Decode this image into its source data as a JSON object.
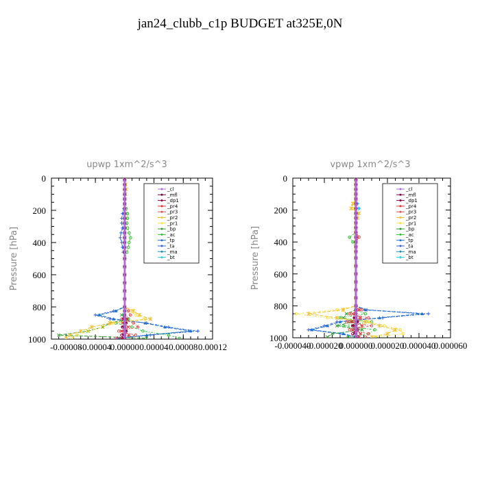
{
  "page_title": "jan24_clubb_c1p  BUDGET at325E,0N",
  "legend_labels": [
    "_cl",
    "_mfl",
    "_dp1",
    "_pr4",
    "_pr3",
    "_pr2",
    "_pr1",
    "_bp",
    "_ac",
    "_tp",
    "_ta",
    "_ma",
    "_bt"
  ],
  "series_colors": {
    "_cl": "#b06ad6",
    "_mfl": "#7a0040",
    "_dp1": "#8b0046",
    "_pr4": "#e03030",
    "_pr3": "#e05050",
    "_pr2": "#f0c030",
    "_pr1": "#f8e040",
    "_bp": "#2f9a2f",
    "_ac": "#30c030",
    "_tp": "#2070d0",
    "_ta": "#3060e0",
    "_ma": "#2090b0",
    "_bt": "#20d0e0"
  },
  "chart_data": [
    {
      "type": "line",
      "title": "upwp   1xm^2/s^3",
      "ylabel": "Pressure [hPa]",
      "xlim": [
        -0.0001,
        0.00012
      ],
      "ylim": [
        1000,
        0
      ],
      "xticks": [
        -8e-05,
        -4e-05,
        0,
        4e-05,
        8e-05,
        0.00012
      ],
      "xtick_labels": [
        "-0.00008",
        "-0.00004",
        "0.00000",
        "0.00004",
        "0.00008",
        "0.00012"
      ],
      "yticks": [
        0,
        200,
        400,
        600,
        800,
        1000
      ],
      "legend": "top-right",
      "pressure": [
        10,
        40,
        70,
        100,
        130,
        160,
        190,
        220,
        250,
        280,
        310,
        340,
        370,
        400,
        430,
        460,
        500,
        550,
        600,
        650,
        700,
        750,
        800,
        825,
        850,
        875,
        900,
        925,
        950,
        975,
        995
      ],
      "series": [
        {
          "name": "_cl",
          "values": [
            0,
            0,
            0,
            0,
            0,
            0,
            0,
            0,
            0,
            0,
            0,
            0,
            0,
            0,
            0,
            0,
            0,
            0,
            0,
            0,
            0,
            0,
            0,
            0,
            0,
            0,
            0,
            0,
            0,
            0,
            0
          ]
        },
        {
          "name": "_mfl",
          "values": [
            0,
            0,
            0,
            0,
            0,
            0,
            0,
            0,
            0,
            0,
            0,
            0,
            0,
            0,
            0,
            0,
            0,
            0,
            0,
            0,
            0,
            0,
            0,
            0,
            0,
            0,
            0,
            0,
            0,
            0,
            0
          ]
        },
        {
          "name": "_dp1",
          "values": [
            0,
            0,
            0,
            0,
            0,
            0,
            0,
            0,
            0,
            0,
            0,
            0,
            0,
            0,
            0,
            0,
            0,
            0,
            0,
            0,
            0,
            0,
            0,
            0,
            0,
            -2e-06,
            2e-06,
            -3e-06,
            2e-06,
            -4e-06,
            -2e-06
          ]
        },
        {
          "name": "_pr4",
          "values": [
            0,
            0,
            0,
            0,
            0,
            0,
            0,
            0,
            0,
            0,
            0,
            0,
            0,
            0,
            0,
            0,
            0,
            0,
            0,
            0,
            0,
            0,
            0,
            0,
            0,
            3e-06,
            -3e-06,
            5e-06,
            -4e-06,
            6e-06,
            -5e-06
          ]
        },
        {
          "name": "_pr3",
          "values": [
            0,
            0,
            0,
            0,
            0,
            0,
            0,
            0,
            0,
            0,
            0,
            0,
            0,
            0,
            0,
            0,
            0,
            0,
            0,
            0,
            0,
            0,
            0,
            5e-06,
            8e-06,
            -4e-06,
            1.2e-05,
            1.8e-05,
            -8e-06,
            1.5e-05,
            -1.2e-05
          ]
        },
        {
          "name": "_pr2",
          "values": [
            0,
            1e-06,
            2e-06,
            1e-06,
            0,
            0,
            0,
            0,
            0,
            0,
            0,
            0,
            0,
            0,
            0,
            0,
            0,
            0,
            0,
            0,
            0,
            0,
            0,
            1.2e-05,
            2e-05,
            3.5e-05,
            -2e-05,
            -4.5e-05,
            -6e-05,
            -7.5e-05,
            -8e-05
          ]
        },
        {
          "name": "_pr1",
          "values": [
            0,
            1e-06,
            1e-06,
            0,
            0,
            0,
            0,
            0,
            0,
            0,
            0,
            0,
            0,
            0,
            0,
            0,
            0,
            0,
            0,
            0,
            0,
            0,
            0,
            8e-06,
            1.5e-05,
            2.8e-05,
            -1.5e-05,
            -3e-05,
            -5e-05,
            -6.5e-05,
            -7.2e-05
          ]
        },
        {
          "name": "_bp",
          "values": [
            0,
            0,
            0,
            0,
            0,
            0,
            0,
            0,
            0,
            0,
            0,
            0,
            0,
            0,
            0,
            0,
            0,
            0,
            0,
            0,
            0,
            0,
            0,
            0,
            -4e-06,
            4e-06,
            -2e-05,
            -3e-05,
            -5e-05,
            -9e-05,
            3e-05
          ]
        },
        {
          "name": "_ac",
          "values": [
            0,
            0,
            0,
            0,
            0,
            0,
            2e-06,
            4e-06,
            4e-06,
            3e-06,
            4e-06,
            6e-06,
            8e-06,
            6e-06,
            5e-06,
            3e-06,
            0,
            0,
            0,
            0,
            0,
            0,
            0,
            0,
            0,
            5e-06,
            -1.2e-05,
            1e-05,
            2.5e-05,
            6e-05,
            7.5e-05
          ]
        },
        {
          "name": "_tp",
          "values": [
            0,
            0,
            0,
            0,
            0,
            0,
            0,
            0,
            0,
            0,
            0,
            0,
            0,
            0,
            0,
            0,
            0,
            0,
            0,
            0,
            0,
            0,
            0,
            -1.2e-05,
            -3.5e-05,
            -1.5e-05,
            2.8e-05,
            5.5e-05,
            9e-05,
            3e-05,
            -1e-05
          ]
        },
        {
          "name": "_ta",
          "values": [
            0,
            0,
            0,
            0,
            0,
            0,
            -1e-06,
            -3e-06,
            -4e-06,
            -4e-06,
            -3e-06,
            -5e-06,
            -6e-06,
            -4e-06,
            -3e-06,
            -2e-06,
            0,
            0,
            0,
            0,
            0,
            0,
            0,
            -1.5e-05,
            -4e-05,
            -2e-05,
            3e-05,
            6e-05,
            0.0001,
            3.5e-05,
            -1e-05
          ]
        },
        {
          "name": "_ma",
          "values": [
            0,
            0,
            0,
            0,
            0,
            0,
            0,
            0,
            0,
            0,
            0,
            0,
            0,
            0,
            0,
            0,
            0,
            0,
            0,
            0,
            0,
            0,
            0,
            -1.2e-05,
            -3.5e-05,
            -1.5e-05,
            2.8e-05,
            5.5e-05,
            9.2e-05,
            3.2e-05,
            -8e-06
          ]
        },
        {
          "name": "_bt",
          "values": [
            0,
            0,
            0,
            0,
            0,
            0,
            0,
            0,
            0,
            0,
            0,
            0,
            0,
            0,
            0,
            0,
            0,
            0,
            0,
            0,
            0,
            0,
            0,
            0,
            0,
            0,
            0,
            0,
            0,
            0,
            0
          ]
        }
      ]
    },
    {
      "type": "line",
      "title": "vpwp   1xm^2/s^3",
      "ylabel": "Pressure [hPa]",
      "xlim": [
        -4e-05,
        6e-05
      ],
      "ylim": [
        1000,
        0
      ],
      "xticks": [
        -4e-05,
        -2e-05,
        0,
        2e-05,
        4e-05,
        6e-05
      ],
      "xtick_labels": [
        "-0.000040",
        "-0.000020",
        "0.000000",
        "0.000020",
        "0.000040",
        "0.000060"
      ],
      "yticks": [
        0,
        200,
        400,
        600,
        800,
        1000
      ],
      "legend": "top-right",
      "pressure": [
        10,
        40,
        70,
        100,
        130,
        160,
        190,
        220,
        250,
        280,
        310,
        340,
        370,
        400,
        430,
        460,
        500,
        550,
        600,
        650,
        700,
        750,
        800,
        825,
        850,
        875,
        900,
        925,
        950,
        975,
        995
      ],
      "series": [
        {
          "name": "_cl",
          "values": [
            0,
            0,
            0,
            0,
            0,
            0,
            0,
            0,
            0,
            0,
            0,
            0,
            0,
            0,
            0,
            0,
            0,
            0,
            0,
            0,
            0,
            0,
            0,
            0,
            0,
            0,
            0,
            0,
            0,
            0,
            0
          ]
        },
        {
          "name": "_mfl",
          "values": [
            0,
            0,
            0,
            0,
            0,
            0,
            0,
            0,
            0,
            0,
            0,
            0,
            0,
            0,
            0,
            0,
            0,
            0,
            0,
            0,
            0,
            0,
            0,
            0,
            0,
            0,
            0,
            0,
            0,
            0,
            0
          ]
        },
        {
          "name": "_dp1",
          "values": [
            0,
            0,
            0,
            0,
            0,
            0,
            0,
            0,
            0,
            0,
            0,
            0,
            0,
            0,
            0,
            0,
            0,
            0,
            0,
            0,
            0,
            0,
            0,
            0,
            0,
            -1e-06,
            1e-06,
            -2e-06,
            1e-06,
            -2e-06,
            1e-06
          ]
        },
        {
          "name": "_pr4",
          "values": [
            0,
            0,
            0,
            0,
            0,
            0,
            0,
            0,
            0,
            0,
            0,
            0,
            1e-06,
            0,
            0,
            0,
            0,
            0,
            0,
            0,
            0,
            0,
            0,
            2e-06,
            -2e-06,
            3e-06,
            -3e-06,
            4e-06,
            -2e-06,
            3e-06,
            2e-06
          ]
        },
        {
          "name": "_pr3",
          "values": [
            0,
            0,
            0,
            0,
            0,
            0,
            0,
            0,
            0,
            0,
            0,
            0,
            2e-06,
            0,
            0,
            0,
            0,
            0,
            0,
            0,
            0,
            0,
            0,
            4e-06,
            -4e-06,
            8e-06,
            -6e-06,
            1e-05,
            -4e-06,
            8e-06,
            6e-06
          ]
        },
        {
          "name": "_pr2",
          "values": [
            0,
            0,
            0,
            0,
            0,
            -2e-06,
            -3e-06,
            2e-06,
            1e-06,
            0,
            0,
            0,
            0,
            0,
            0,
            0,
            0,
            0,
            0,
            0,
            0,
            0,
            0,
            -8e-06,
            -3e-05,
            -1.2e-05,
            6e-06,
            1.5e-05,
            2.5e-05,
            2e-05,
            1e-05
          ]
        },
        {
          "name": "_pr1",
          "values": [
            0,
            0,
            0,
            0,
            0,
            -1e-06,
            -2e-06,
            1e-06,
            1e-06,
            0,
            0,
            0,
            0,
            0,
            0,
            0,
            0,
            0,
            0,
            0,
            0,
            0,
            0,
            -1.2e-05,
            -3.8e-05,
            -1.8e-05,
            8e-06,
            1.8e-05,
            2.8e-05,
            3e-05,
            1.2e-05
          ]
        },
        {
          "name": "_bp",
          "values": [
            0,
            0,
            0,
            0,
            0,
            0,
            0,
            0,
            0,
            0,
            0,
            0,
            0,
            0,
            0,
            0,
            0,
            0,
            0,
            0,
            0,
            0,
            0,
            0,
            -6e-06,
            -8e-06,
            -2e-06,
            -1.2e-05,
            4e-06,
            -1.5e-05,
            -1.8e-05
          ]
        },
        {
          "name": "_ac",
          "values": [
            0,
            0,
            0,
            0,
            0,
            0,
            0,
            0,
            0,
            0,
            0,
            0,
            -4e-06,
            -2e-06,
            0,
            0,
            0,
            0,
            0,
            0,
            0,
            0,
            0,
            0,
            6e-06,
            -1e-05,
            1e-05,
            -8e-06,
            1.2e-05,
            8e-06,
            -5e-06
          ]
        },
        {
          "name": "_tp",
          "values": [
            0,
            0,
            0,
            0,
            0,
            0,
            0,
            0,
            0,
            0,
            0,
            0,
            0,
            0,
            0,
            0,
            0,
            0,
            0,
            0,
            0,
            0,
            0,
            6e-06,
            4.2e-05,
            1.5e-05,
            -1e-05,
            -1.8e-05,
            -2.8e-05,
            -8e-06,
            0
          ]
        },
        {
          "name": "_ta",
          "values": [
            0,
            0,
            0,
            0,
            0,
            0,
            0,
            0,
            0,
            0,
            0,
            0,
            0,
            0,
            0,
            0,
            0,
            0,
            0,
            0,
            0,
            0,
            0,
            7e-06,
            4.6e-05,
            1.7e-05,
            -1.2e-05,
            -2e-05,
            -3e-05,
            -1e-05,
            0
          ]
        },
        {
          "name": "_ma",
          "values": [
            0,
            0,
            0,
            0,
            0,
            0,
            0,
            0,
            0,
            0,
            0,
            0,
            0,
            0,
            0,
            0,
            0,
            0,
            0,
            0,
            0,
            0,
            0,
            6e-06,
            4.2e-05,
            1.5e-05,
            -1e-05,
            -1.8e-05,
            -2.8e-05,
            -8e-06,
            0
          ]
        },
        {
          "name": "_bt",
          "values": [
            0,
            0,
            0,
            0,
            0,
            1e-06,
            2e-06,
            1e-06,
            0,
            0,
            0,
            0,
            0,
            0,
            0,
            0,
            0,
            0,
            0,
            0,
            0,
            0,
            0,
            0,
            0,
            0,
            0,
            0,
            0,
            0,
            0
          ]
        }
      ]
    }
  ]
}
